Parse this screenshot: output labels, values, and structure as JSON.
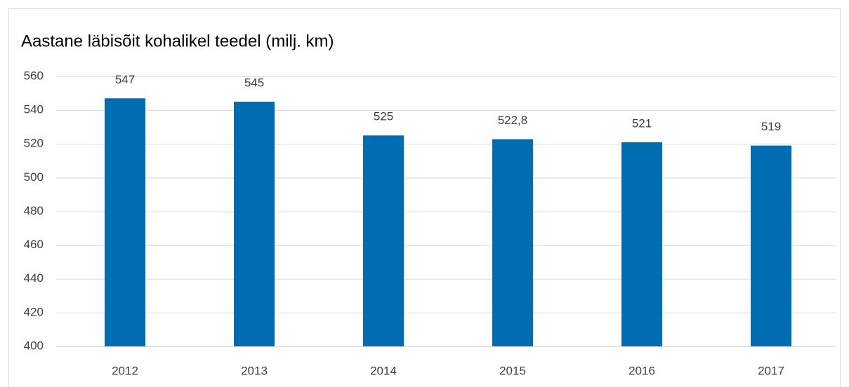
{
  "chart_data": {
    "type": "bar",
    "title": "Aastane läbisõit kohalikel teedel (milj. km)",
    "categories": [
      "2012",
      "2013",
      "2014",
      "2015",
      "2016",
      "2017"
    ],
    "values": [
      547,
      545,
      525,
      522.8,
      521,
      519
    ],
    "value_labels": [
      "547",
      "545",
      "525",
      "522,8",
      "521",
      "519"
    ],
    "color": "#006db3",
    "ylim": [
      400,
      560
    ],
    "yticks": [
      400,
      420,
      440,
      460,
      480,
      500,
      520,
      540,
      560
    ],
    "grid": true
  }
}
